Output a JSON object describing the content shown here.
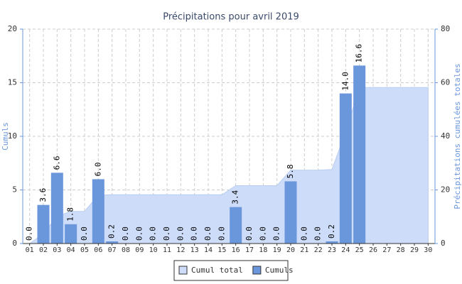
{
  "chart_data": {
    "type": "bar-area",
    "title": "Précipitations pour avril 2019",
    "y_label": "Cumuls",
    "y2_label": "Précipitations cumulées totales",
    "categories": [
      "01",
      "02",
      "03",
      "04",
      "05",
      "06",
      "07",
      "08",
      "09",
      "10",
      "11",
      "12",
      "13",
      "14",
      "15",
      "16",
      "17",
      "18",
      "19",
      "20",
      "21",
      "22",
      "23",
      "24",
      "25",
      "26",
      "27",
      "28",
      "29",
      "30"
    ],
    "series": [
      {
        "name": "Cumul total",
        "color": "#cddcf8",
        "axis": "y2",
        "kind": "area",
        "values": [
          0,
          3.6,
          10.2,
          12.0,
          12.0,
          18.0,
          18.2,
          18.2,
          18.2,
          18.2,
          18.2,
          18.2,
          18.2,
          18.2,
          18.2,
          21.6,
          21.6,
          21.6,
          21.6,
          27.4,
          27.4,
          27.4,
          27.6,
          41.6,
          58.2,
          58.2,
          58.2,
          58.2,
          58.2,
          58.2
        ]
      },
      {
        "name": "Cumuls",
        "color": "#6a96dc",
        "kind": "bar",
        "values": [
          0,
          3.6,
          6.6,
          1.8,
          0,
          6.0,
          0.2,
          0,
          0,
          0,
          0,
          0,
          0,
          0,
          0,
          3.4,
          0,
          0,
          0,
          5.8,
          0,
          0,
          0.2,
          14.0,
          16.6,
          null,
          null,
          null,
          null,
          null
        ],
        "value_labels": [
          "0.0",
          "3.6",
          "6.6",
          "1.8",
          "0.0",
          "6.0",
          "0.2",
          "0.0",
          "0.0",
          "0.0",
          "0.0",
          "0.0",
          "0.0",
          "0.0",
          "0.0",
          "3.4",
          "0.0",
          "0.0",
          "0.0",
          "5.8",
          "0.0",
          "0.0",
          "0.2",
          "14.0",
          "16.6",
          null,
          null,
          null,
          null,
          null
        ]
      }
    ],
    "ylim": [
      0,
      20
    ],
    "yticks": [
      0,
      5,
      10,
      15,
      20
    ],
    "y2lim": [
      0,
      80
    ],
    "y2ticks": [
      0,
      20,
      40,
      60,
      80
    ],
    "grid": true
  }
}
